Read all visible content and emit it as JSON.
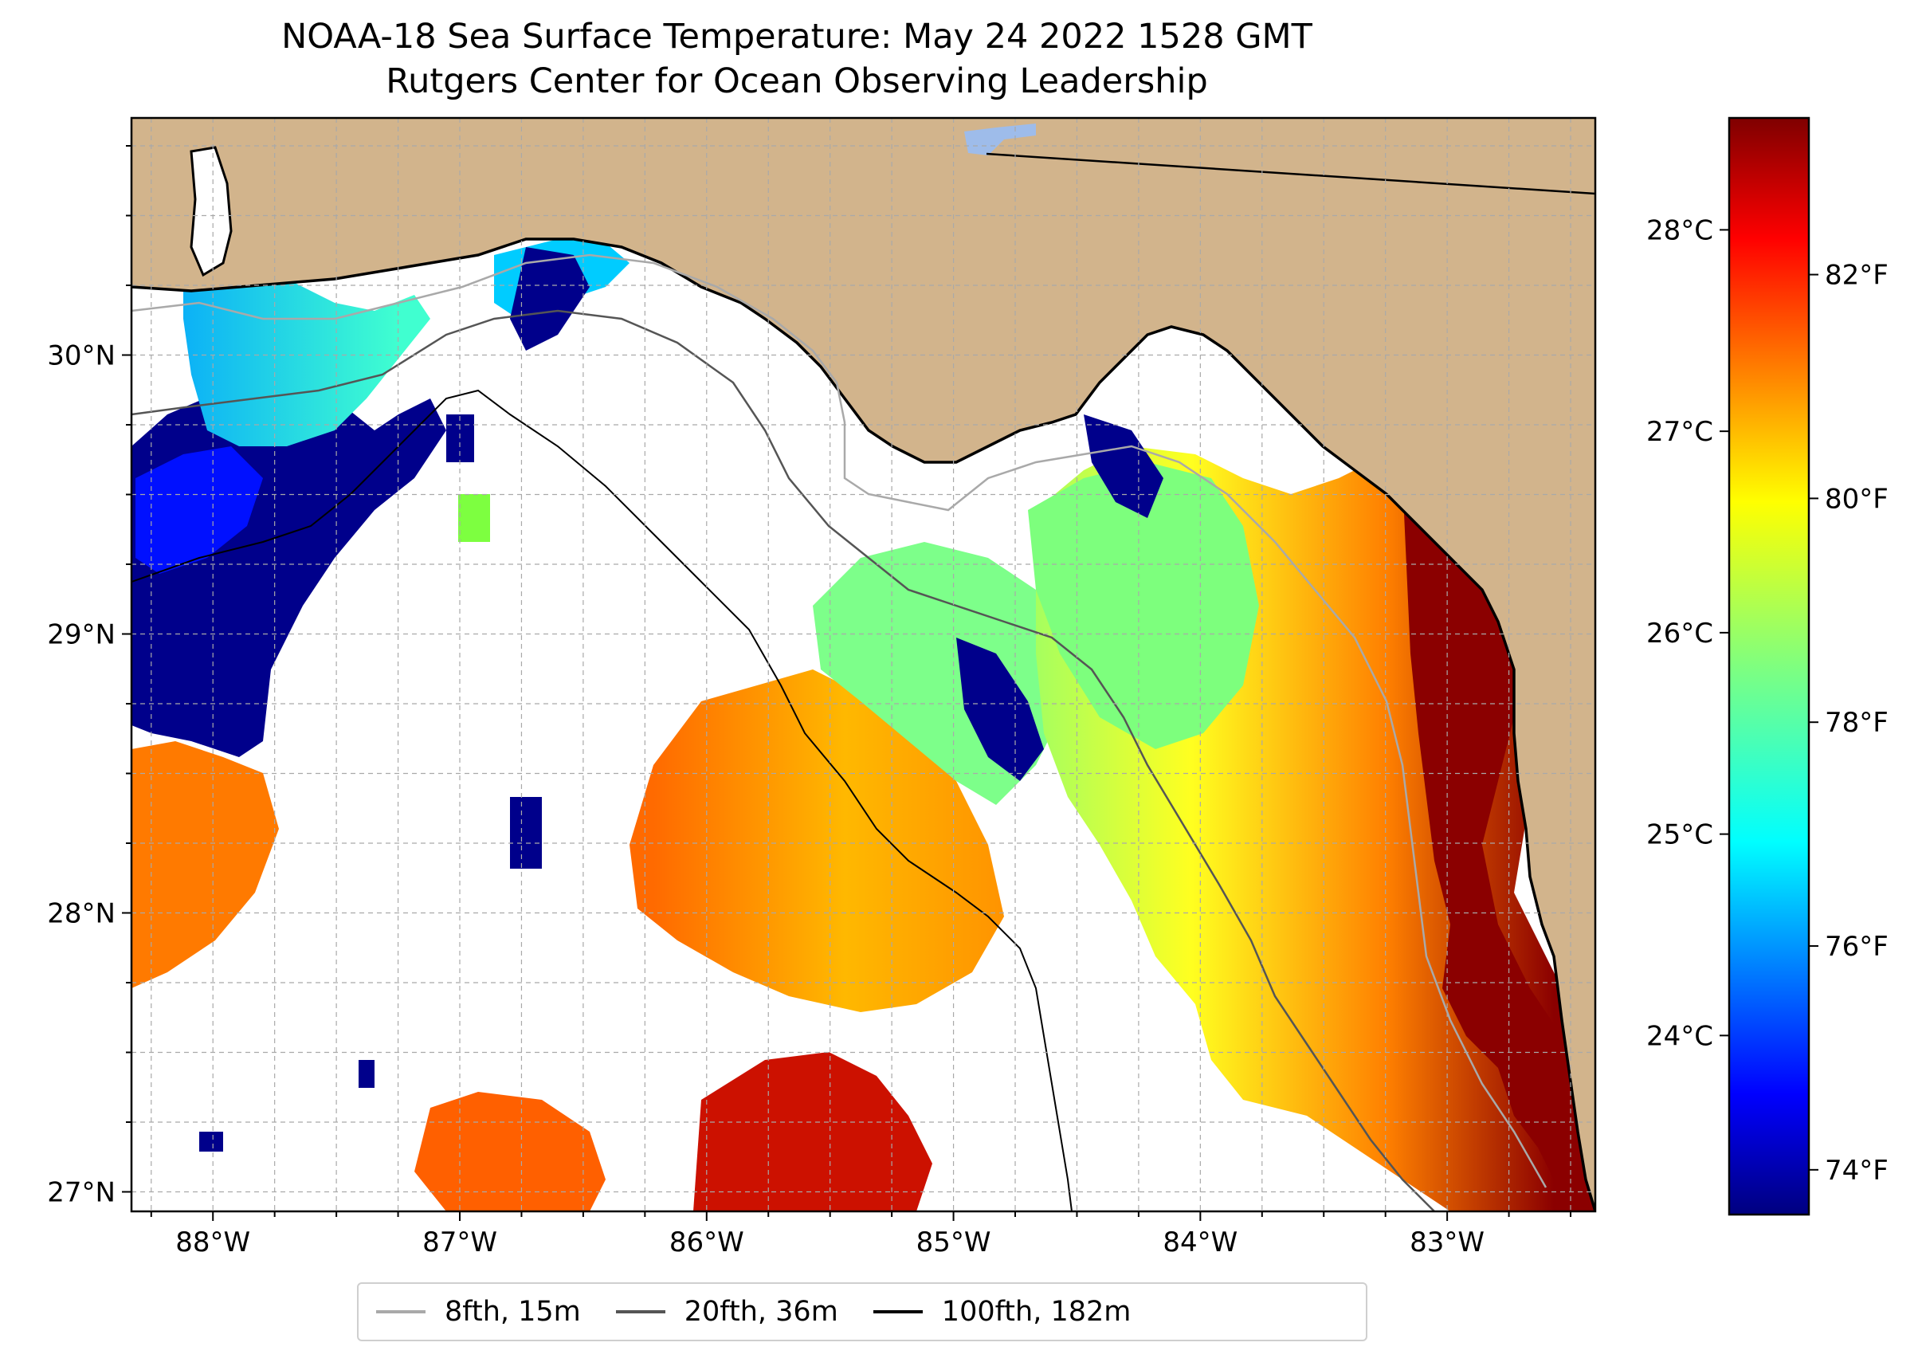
{
  "title": {
    "line1": "NOAA-18 Sea Surface Temperature: May 24 2022 1528 GMT",
    "line2": "Rutgers Center for Ocean Observing Leadership"
  },
  "map": {
    "extent_lon": [
      -88.33,
      -82.4
    ],
    "extent_lat": [
      26.93,
      30.85
    ],
    "colors": {
      "land": "#d2b48c",
      "coastline": "#000000",
      "no_data": "#ffffff",
      "gridline": "#a9a9a9"
    },
    "lon_ticks": [
      {
        "value": -88,
        "label": "88°W"
      },
      {
        "value": -87,
        "label": "87°W"
      },
      {
        "value": -86,
        "label": "86°W"
      },
      {
        "value": -85,
        "label": "85°W"
      },
      {
        "value": -84,
        "label": "84°W"
      },
      {
        "value": -83,
        "label": "83°W"
      }
    ],
    "lat_ticks": [
      {
        "value": 27,
        "label": "27°N"
      },
      {
        "value": 28,
        "label": "28°N"
      },
      {
        "value": 29,
        "label": "29°N"
      },
      {
        "value": 30,
        "label": "30°N"
      }
    ]
  },
  "colorbar": {
    "colormap": "jet",
    "colors": [
      "#00007f",
      "#0000ff",
      "#007fff",
      "#00ffff",
      "#7fff7f",
      "#ffff00",
      "#ff7f00",
      "#ff0000",
      "#7f0000"
    ],
    "range_f": [
      73.6,
      83.4
    ],
    "celsius_ticks": [
      {
        "value": 24,
        "label": "24°C"
      },
      {
        "value": 25,
        "label": "25°C"
      },
      {
        "value": 26,
        "label": "26°C"
      },
      {
        "value": 27,
        "label": "27°C"
      },
      {
        "value": 28,
        "label": "28°C"
      }
    ],
    "fahrenheit_ticks": [
      {
        "value": 74,
        "label": "74°F"
      },
      {
        "value": 76,
        "label": "76°F"
      },
      {
        "value": 78,
        "label": "78°F"
      },
      {
        "value": 80,
        "label": "80°F"
      },
      {
        "value": 82,
        "label": "82°F"
      }
    ]
  },
  "legend": {
    "items": [
      {
        "label": "8fth, 15m",
        "color": "#a9a9a9"
      },
      {
        "label": "20fth, 36m",
        "color": "#555555"
      },
      {
        "label": "100fth, 182m",
        "color": "#000000"
      }
    ]
  }
}
